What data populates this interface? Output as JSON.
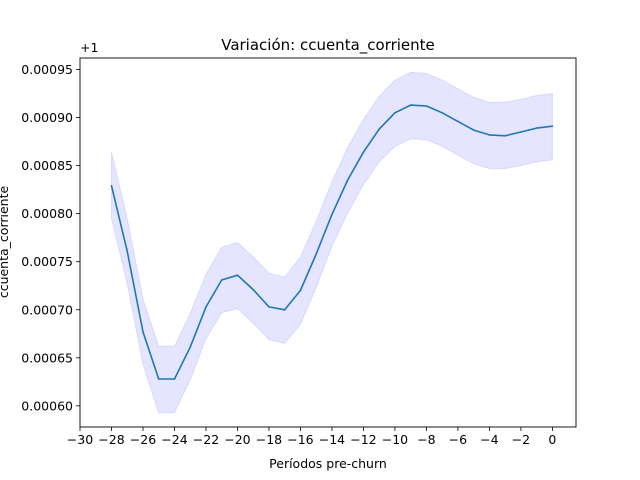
{
  "chart_data": {
    "type": "line",
    "title": "Variación: ccuenta_corriente",
    "xlabel": "Períodos pre-churn",
    "ylabel": "ccuenta_corriente",
    "y_offset_label": "+1",
    "xlim": [
      -30,
      1.5
    ],
    "ylim": [
      0.000578,
      0.000962
    ],
    "x_ticks": [
      -30,
      -28,
      -26,
      -24,
      -22,
      -20,
      -18,
      -16,
      -14,
      -12,
      -10,
      -8,
      -6,
      -4,
      -2,
      0
    ],
    "x_tick_labels": [
      "−30",
      "−28",
      "−26",
      "−24",
      "−22",
      "−20",
      "−18",
      "−16",
      "−14",
      "−12",
      "−10",
      "−8",
      "−6",
      "−4",
      "−2",
      "0"
    ],
    "y_ticks": [
      0.0006,
      0.00065,
      0.0007,
      0.00075,
      0.0008,
      0.00085,
      0.0009,
      0.00095
    ],
    "y_tick_labels": [
      "0.00060",
      "0.00065",
      "0.00070",
      "0.00075",
      "0.00080",
      "0.00085",
      "0.00090",
      "0.00095"
    ],
    "grid": false,
    "line_color": "#1f77b4",
    "band_color": "#0000ff",
    "series": [
      {
        "x": [
          -28,
          -27,
          -26,
          -25,
          -24,
          -23,
          -22,
          -21,
          -20,
          -19,
          -18,
          -17,
          -16,
          -15,
          -14,
          -13,
          -12,
          -11,
          -10,
          -9,
          -8,
          -7,
          -6,
          -5,
          -4,
          -3,
          -2,
          -1,
          0
        ],
        "values": [
          0.000829,
          0.000761,
          0.000677,
          0.000628,
          0.000628,
          0.000661,
          0.000703,
          0.000731,
          0.000736,
          0.000721,
          0.000703,
          0.0007,
          0.00072,
          0.000758,
          0.000799,
          0.000835,
          0.000864,
          0.000888,
          0.000905,
          0.000913,
          0.000912,
          0.000905,
          0.000896,
          0.000887,
          0.000882,
          0.000881,
          0.000885,
          0.000889,
          0.000891
        ],
        "lower": [
          0.000795,
          0.000727,
          0.000643,
          0.000593,
          0.000593,
          0.000627,
          0.00067,
          0.000697,
          0.000701,
          0.000686,
          0.000669,
          0.000665,
          0.000685,
          0.000723,
          0.000766,
          0.000801,
          0.00083,
          0.000854,
          0.00087,
          0.000878,
          0.000877,
          0.00087,
          0.000861,
          0.000852,
          0.000847,
          0.000847,
          0.00085,
          0.000854,
          0.000856
        ],
        "upper": [
          0.000864,
          0.000795,
          0.000711,
          0.000662,
          0.000662,
          0.000696,
          0.000737,
          0.000765,
          0.00077,
          0.000755,
          0.000738,
          0.000734,
          0.000755,
          0.000792,
          0.000833,
          0.000869,
          0.000898,
          0.000922,
          0.000939,
          0.000947,
          0.000946,
          0.000939,
          0.00093,
          0.000921,
          0.000916,
          0.000916,
          0.000919,
          0.000923,
          0.000925
        ]
      }
    ]
  }
}
